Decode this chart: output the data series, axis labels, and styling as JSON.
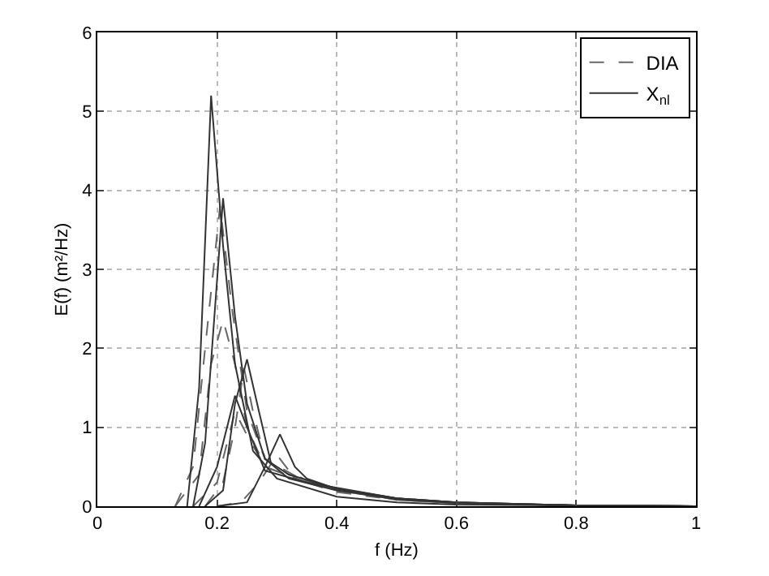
{
  "chart_data": {
    "type": "line",
    "xlabel": "f (Hz)",
    "ylabel": "E(f) (m²/Hz)",
    "xlim": [
      0,
      1
    ],
    "xticks": [
      0,
      0.2,
      0.4,
      0.6,
      0.8,
      1
    ],
    "ylim": [
      0,
      6
    ],
    "yticks": [
      0,
      1,
      2,
      3,
      4,
      5,
      6
    ],
    "grid": true,
    "legend": "top right",
    "marker": "none",
    "series": [
      {
        "name": "DIA",
        "color": "#666666",
        "line_style": "dashed",
        "x": [
          0.13,
          0.16,
          0.18,
          0.205,
          0.225,
          0.25,
          0.28,
          0.35,
          0.4,
          0.5,
          0.6,
          0.8,
          1
        ],
        "values": [
          0,
          0.5,
          2.0,
          3.8,
          2.5,
          1.2,
          0.6,
          0.3,
          0.18,
          0.08,
          0.04,
          0.01,
          0
        ]
      },
      {
        "color": "#666666",
        "line_style": "dashed",
        "x": [
          0.13,
          0.17,
          0.19,
          0.21,
          0.23,
          0.25,
          0.28,
          0.35,
          0.5,
          0.6,
          0.8,
          1
        ],
        "values": [
          0,
          0.4,
          1.8,
          2.36,
          1.8,
          1.0,
          0.5,
          0.3,
          0.08,
          0.04,
          0.01,
          0
        ]
      },
      {
        "color": "#666666",
        "line_style": "dashed",
        "x": [
          0.18,
          0.21,
          0.23,
          0.245,
          0.26,
          0.28,
          0.32,
          0.4,
          0.5,
          0.6,
          0.8,
          1
        ],
        "values": [
          0,
          0.3,
          1.0,
          1.75,
          1.2,
          0.6,
          0.4,
          0.2,
          0.09,
          0.04,
          0.01,
          0
        ]
      },
      {
        "color": "#666666",
        "line_style": "dashed",
        "x": [
          0.2,
          0.24,
          0.27,
          0.3,
          0.32,
          0.35,
          0.4,
          0.5,
          0.6,
          0.8,
          1
        ],
        "values": [
          0,
          0.05,
          0.3,
          0.65,
          0.45,
          0.32,
          0.2,
          0.09,
          0.04,
          0.01,
          0
        ]
      },
      {
        "color": "#666666",
        "line_style": "dashed",
        "x": [
          0.16,
          0.2,
          0.23,
          0.25,
          0.28,
          0.35,
          0.5,
          0.6,
          0.8,
          1
        ],
        "values": [
          0,
          0.3,
          1.2,
          0.9,
          0.5,
          0.3,
          0.08,
          0.04,
          0.01,
          0
        ]
      },
      {
        "name": "X$_{nl}$",
        "color": "#333333",
        "line_style": "solid",
        "x": [
          0.15,
          0.17,
          0.19,
          0.21,
          0.23,
          0.26,
          0.3,
          0.4,
          0.5,
          0.6,
          0.8,
          1
        ],
        "values": [
          0,
          1.5,
          5.2,
          3.3,
          1.8,
          0.7,
          0.35,
          0.12,
          0.05,
          0.02,
          0.01,
          0
        ]
      },
      {
        "color": "#333333",
        "line_style": "solid",
        "x": [
          0.16,
          0.18,
          0.21,
          0.23,
          0.25,
          0.28,
          0.32,
          0.4,
          0.5,
          0.6,
          0.8,
          1
        ],
        "values": [
          0,
          0.8,
          3.9,
          2.4,
          1.3,
          0.6,
          0.35,
          0.2,
          0.09,
          0.04,
          0.01,
          0
        ]
      },
      {
        "color": "#333333",
        "line_style": "solid",
        "x": [
          0.18,
          0.21,
          0.23,
          0.25,
          0.27,
          0.29,
          0.32,
          0.4,
          0.5,
          0.6,
          0.8,
          1
        ],
        "values": [
          0,
          0.2,
          1.3,
          1.86,
          1.2,
          0.55,
          0.4,
          0.22,
          0.1,
          0.05,
          0.01,
          0
        ]
      },
      {
        "color": "#333333",
        "line_style": "solid",
        "x": [
          0.2,
          0.25,
          0.28,
          0.305,
          0.33,
          0.35,
          0.4,
          0.5,
          0.6,
          0.8,
          1
        ],
        "values": [
          0,
          0.05,
          0.5,
          0.91,
          0.5,
          0.35,
          0.22,
          0.1,
          0.05,
          0.01,
          0
        ]
      },
      {
        "color": "#333333",
        "line_style": "solid",
        "x": [
          0.17,
          0.2,
          0.23,
          0.25,
          0.28,
          0.35,
          0.5,
          0.6,
          0.8,
          1
        ],
        "values": [
          0,
          0.5,
          1.4,
          1.0,
          0.45,
          0.3,
          0.1,
          0.05,
          0.01,
          0
        ]
      }
    ]
  }
}
